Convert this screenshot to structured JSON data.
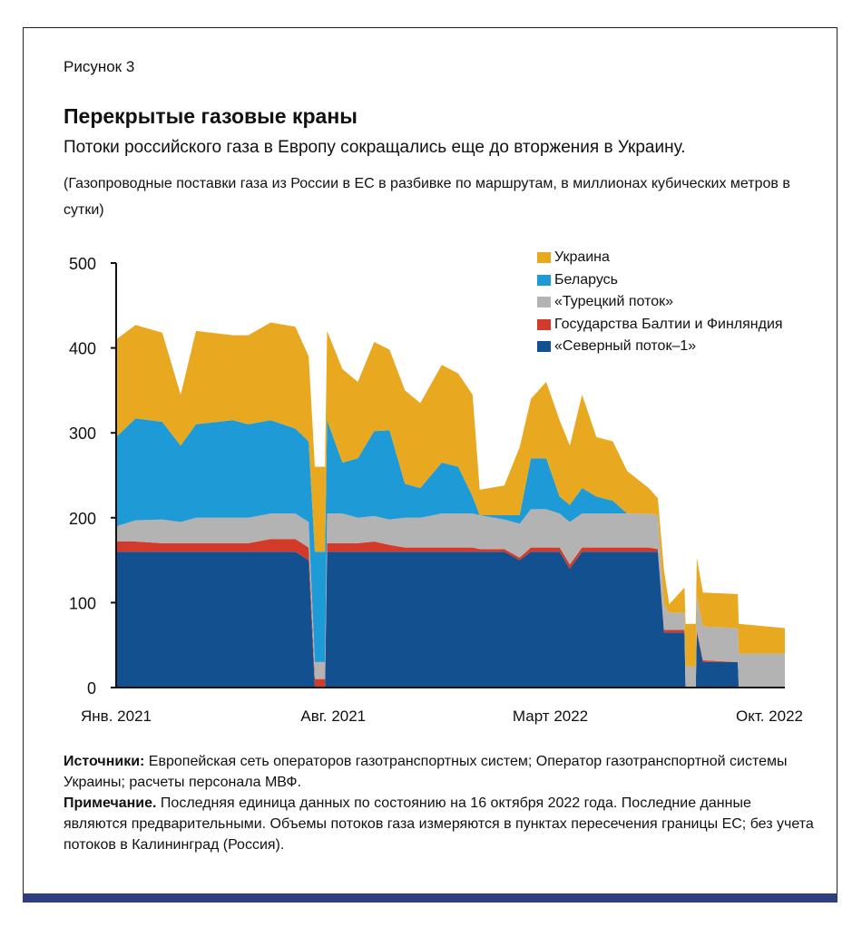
{
  "figure_label": "Рисунок 3",
  "title": "Перекрытые газовые краны",
  "subtitle": "Потоки российского газа в Европу сокращались еще до вторжения в Украину.",
  "description": "(Газопроводные поставки газа из России в ЕС в разбивке по маршрутам, в миллионах кубических метров в сутки)",
  "notes": {
    "sources_label": "Источники:",
    "sources_text": " Европейская сеть операторов газотранспортных систем; Оператор газотранспортной системы Украины; расчеты персонала МВФ.",
    "note_label": "Примечание.",
    "note_text": " Последняя единица данных по состоянию на 16 октября 2022 года. Последние данные являются предварительными. Объемы потоков газа измеряются в пунктах пересечения границы ЕС; без учета потоков в Калининград (Россия)."
  },
  "colors": {
    "frame_bar": "#2e3f80"
  },
  "chart_data": {
    "type": "area",
    "stacked": true,
    "ylim": [
      0,
      500
    ],
    "yticks": [
      "0",
      "100",
      "200",
      "300",
      "400",
      "500"
    ],
    "xlim": [
      "2021-01-01",
      "2022-10-16"
    ],
    "xticks": [
      {
        "date": "2021-01-01",
        "label": "Янв. 2021"
      },
      {
        "date": "2021-08-01",
        "label": "Авг. 2021"
      },
      {
        "date": "2022-03-01",
        "label": "Март 2022"
      },
      {
        "date": "2022-10-01",
        "label": "Окт. 2022"
      }
    ],
    "legend_position": "top-right",
    "x": [
      "2021-01-01",
      "2021-01-20",
      "2021-02-15",
      "2021-03-05",
      "2021-03-20",
      "2021-04-25",
      "2021-05-10",
      "2021-06-01",
      "2021-06-25",
      "2021-07-08",
      "2021-07-14",
      "2021-07-24",
      "2021-07-26",
      "2021-08-10",
      "2021-08-25",
      "2021-09-10",
      "2021-09-25",
      "2021-10-10",
      "2021-10-25",
      "2021-11-15",
      "2021-12-01",
      "2021-12-15",
      "2021-12-22",
      "2022-01-15",
      "2022-01-30",
      "2022-02-10",
      "2022-02-25",
      "2022-03-10",
      "2022-03-20",
      "2022-04-01",
      "2022-04-15",
      "2022-05-01",
      "2022-05-15",
      "2022-06-05",
      "2022-06-14",
      "2022-06-20",
      "2022-06-25",
      "2022-07-10",
      "2022-07-11",
      "2022-07-21",
      "2022-07-22",
      "2022-07-28",
      "2022-08-31",
      "2022-09-01",
      "2022-10-16"
    ],
    "series": [
      {
        "name": "«Северный поток–1»",
        "color": "#12508f",
        "values": [
          160,
          160,
          160,
          160,
          160,
          160,
          160,
          160,
          160,
          150,
          0,
          0,
          160,
          160,
          160,
          160,
          160,
          160,
          160,
          160,
          160,
          160,
          160,
          160,
          150,
          160,
          160,
          160,
          140,
          160,
          160,
          160,
          160,
          160,
          160,
          65,
          65,
          65,
          0,
          0,
          65,
          30,
          30,
          0,
          0
        ]
      },
      {
        "name": "Государства Балтии и Финляндия",
        "color": "#d23a2a",
        "values": [
          12,
          12,
          10,
          10,
          10,
          10,
          10,
          15,
          15,
          15,
          10,
          10,
          10,
          10,
          10,
          12,
          8,
          5,
          5,
          5,
          5,
          5,
          3,
          3,
          3,
          5,
          5,
          5,
          5,
          5,
          5,
          5,
          5,
          5,
          3,
          3,
          3,
          3,
          0,
          0,
          3,
          2,
          0,
          0,
          0
        ]
      },
      {
        "name": "«Турецкий поток»",
        "color": "#b3b3b3",
        "values": [
          18,
          25,
          28,
          25,
          30,
          30,
          30,
          30,
          30,
          30,
          20,
          20,
          35,
          35,
          30,
          30,
          30,
          35,
          35,
          40,
          40,
          40,
          40,
          35,
          40,
          45,
          45,
          40,
          50,
          40,
          40,
          40,
          40,
          40,
          40,
          30,
          20,
          20,
          25,
          25,
          40,
          40,
          40,
          40,
          40
        ]
      },
      {
        "name": "Беларусь",
        "color": "#1e9ad6",
        "values": [
          105,
          120,
          115,
          90,
          110,
          115,
          110,
          110,
          100,
          95,
          130,
          130,
          110,
          60,
          70,
          100,
          105,
          40,
          35,
          60,
          55,
          20,
          0,
          5,
          10,
          60,
          60,
          20,
          20,
          30,
          20,
          15,
          0,
          0,
          0,
          0,
          0,
          0,
          0,
          0,
          0,
          0,
          0,
          0,
          0
        ]
      },
      {
        "name": "Украина",
        "color": "#e8a820",
        "values": [
          115,
          110,
          105,
          60,
          110,
          100,
          105,
          115,
          120,
          100,
          100,
          100,
          105,
          110,
          90,
          105,
          95,
          110,
          100,
          115,
          110,
          120,
          30,
          35,
          80,
          70,
          90,
          90,
          70,
          110,
          70,
          70,
          50,
          30,
          20,
          40,
          10,
          30,
          50,
          50,
          45,
          40,
          40,
          35,
          30
        ]
      }
    ]
  }
}
